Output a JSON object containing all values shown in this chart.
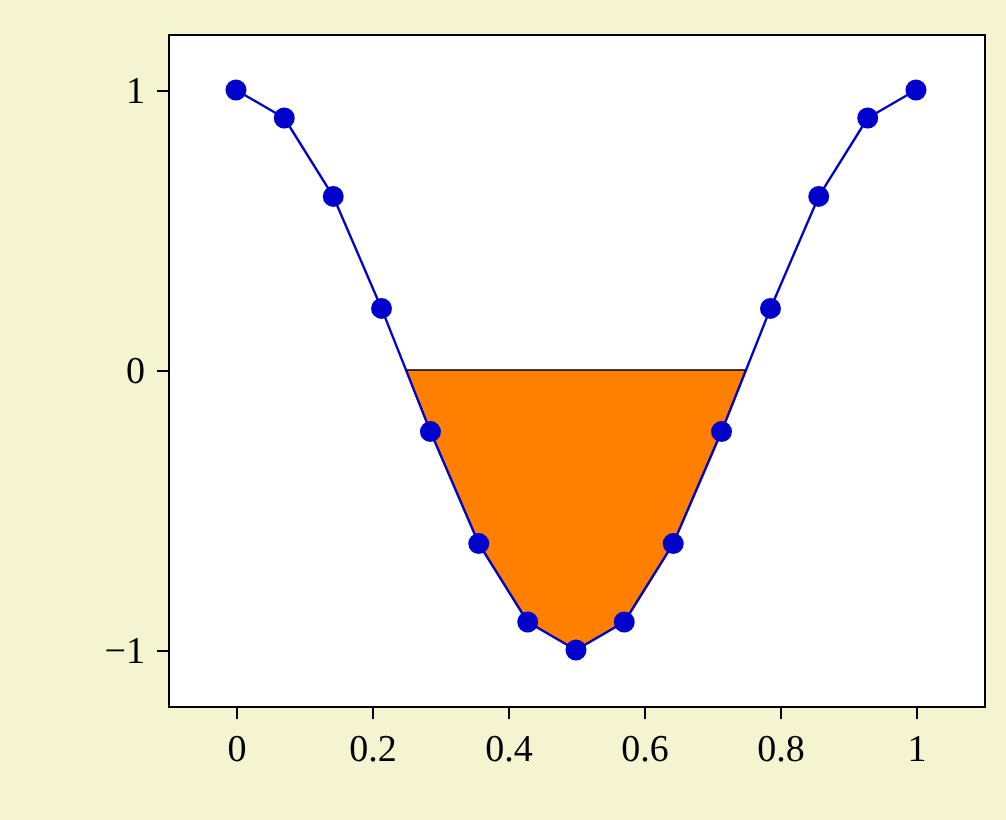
{
  "chart_data": {
    "type": "line",
    "xlim": [
      -0.1,
      1.1
    ],
    "ylim": [
      -1.2,
      1.2
    ],
    "xticks": [
      0,
      0.2,
      0.4,
      0.6,
      0.8,
      1
    ],
    "yticks": [
      {
        "value": -1,
        "label": "−1"
      },
      0,
      1
    ],
    "grid": false,
    "series": [
      {
        "type": "area",
        "color": "#ff8000",
        "x": [
          0.25,
          0.286,
          0.357,
          0.429,
          0.5,
          0.571,
          0.643,
          0.714,
          0.75
        ],
        "values": [
          0,
          -0.22,
          -0.62,
          -0.9,
          -1,
          -0.9,
          -0.62,
          -0.22,
          0
        ]
      },
      {
        "color": "#0000cc",
        "marker": "circle",
        "x": [
          0,
          0.071,
          0.143,
          0.214,
          0.286,
          0.357,
          0.429,
          0.5,
          0.571,
          0.643,
          0.714,
          0.786,
          0.857,
          0.929,
          1
        ],
        "values": [
          1,
          0.9,
          0.62,
          0.22,
          -0.22,
          -0.62,
          -0.9,
          -1,
          -0.9,
          -0.62,
          -0.22,
          0.22,
          0.62,
          0.9,
          1
        ]
      }
    ]
  }
}
